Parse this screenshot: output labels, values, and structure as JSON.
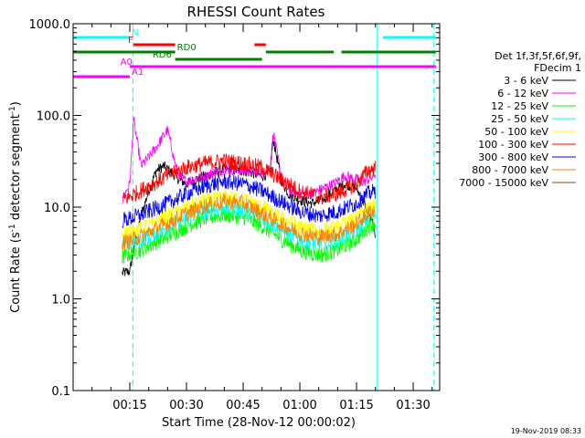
{
  "chart_data": {
    "type": "line",
    "title": "RHESSI Count Rates",
    "xlabel": "Start Time (28-Nov-12 00:00:02)",
    "ylabel": "Count Rate (s⁻¹ detector segment⁻¹)",
    "ylabel_main": "Count Rate (s",
    "ylabel_mid": " detector segment",
    "ylabel_end": ")",
    "ylabel_sup": "-1",
    "yscale": "log",
    "xlim_minutes": [
      0,
      97
    ],
    "ylim": [
      0.1,
      1000
    ],
    "x_ticks": [
      {
        "label": "00:15",
        "m": 15
      },
      {
        "label": "00:30",
        "m": 30
      },
      {
        "label": "00:45",
        "m": 45
      },
      {
        "label": "01:00",
        "m": 60
      },
      {
        "label": "01:15",
        "m": 75
      },
      {
        "label": "01:30",
        "m": 90
      }
    ],
    "y_ticks": [
      {
        "label": "1000.0",
        "v": 1000
      },
      {
        "label": "100.0",
        "v": 100
      },
      {
        "label": "10.0",
        "v": 10
      },
      {
        "label": "1.0",
        "v": 1
      },
      {
        "label": "0.1",
        "v": 0.1
      }
    ],
    "legend": {
      "header1": "Det 1f,3f,5f,6f,9f,",
      "header2": "FDecim 1",
      "position": "right"
    },
    "footer": "19-Nov-2019 08:33",
    "data_start_minute": 13,
    "data_end_minute": 80,
    "series": [
      {
        "name": "3 - 6 keV",
        "color": "#000000",
        "points": [
          [
            13,
            1.9
          ],
          [
            15,
            2.0
          ],
          [
            16,
            3.5
          ],
          [
            18,
            8
          ],
          [
            20,
            15
          ],
          [
            22,
            25
          ],
          [
            24,
            28
          ],
          [
            26,
            24
          ],
          [
            28,
            20
          ],
          [
            30,
            18
          ],
          [
            35,
            22
          ],
          [
            40,
            26
          ],
          [
            45,
            25
          ],
          [
            50,
            22
          ],
          [
            52,
            23
          ],
          [
            53,
            55
          ],
          [
            55,
            20
          ],
          [
            57,
            14
          ],
          [
            60,
            12
          ],
          [
            63,
            11
          ],
          [
            66,
            12
          ],
          [
            69,
            15
          ],
          [
            72,
            18
          ],
          [
            75,
            16
          ],
          [
            77,
            11
          ],
          [
            79,
            7
          ],
          [
            80,
            5
          ]
        ]
      },
      {
        "name": "6 - 12 keV",
        "color": "#ff00ff",
        "points": [
          [
            13,
            12
          ],
          [
            15,
            18
          ],
          [
            16,
            90
          ],
          [
            18,
            28
          ],
          [
            20,
            35
          ],
          [
            22,
            45
          ],
          [
            25,
            70
          ],
          [
            27,
            30
          ],
          [
            28,
            22
          ],
          [
            30,
            19
          ],
          [
            35,
            22
          ],
          [
            40,
            26
          ],
          [
            45,
            25
          ],
          [
            50,
            24
          ],
          [
            52,
            26
          ],
          [
            53,
            65
          ],
          [
            55,
            22
          ],
          [
            57,
            15
          ],
          [
            60,
            14
          ],
          [
            63,
            14
          ],
          [
            66,
            16
          ],
          [
            69,
            18
          ],
          [
            72,
            22
          ],
          [
            75,
            20
          ],
          [
            77,
            19
          ],
          [
            79,
            21
          ],
          [
            80,
            23
          ]
        ]
      },
      {
        "name": "12 - 25 keV",
        "color": "#00ff00",
        "points": [
          [
            13,
            2.8
          ],
          [
            15,
            3.1
          ],
          [
            17,
            3.3
          ],
          [
            20,
            3.8
          ],
          [
            25,
            4.8
          ],
          [
            30,
            6.2
          ],
          [
            35,
            7.6
          ],
          [
            40,
            8.3
          ],
          [
            45,
            7.8
          ],
          [
            50,
            6.2
          ],
          [
            55,
            4.5
          ],
          [
            60,
            3.4
          ],
          [
            65,
            3.0
          ],
          [
            70,
            3.4
          ],
          [
            75,
            4.5
          ],
          [
            78,
            6
          ],
          [
            80,
            7
          ]
        ]
      },
      {
        "name": "25 - 50 keV",
        "color": "#00ffff",
        "points": [
          [
            13,
            3.8
          ],
          [
            15,
            4.0
          ],
          [
            17,
            4.2
          ],
          [
            20,
            4.8
          ],
          [
            25,
            6.0
          ],
          [
            30,
            7.6
          ],
          [
            35,
            9.0
          ],
          [
            40,
            9.8
          ],
          [
            45,
            9.3
          ],
          [
            50,
            7.6
          ],
          [
            55,
            5.7
          ],
          [
            60,
            4.5
          ],
          [
            65,
            4.0
          ],
          [
            70,
            4.4
          ],
          [
            75,
            5.6
          ],
          [
            78,
            7.5
          ],
          [
            80,
            8.5
          ]
        ]
      },
      {
        "name": "50 - 100 keV",
        "color": "#ffff00",
        "points": [
          [
            13,
            5.2
          ],
          [
            15,
            5.5
          ],
          [
            17,
            5.8
          ],
          [
            20,
            6.4
          ],
          [
            25,
            7.8
          ],
          [
            30,
            9.8
          ],
          [
            35,
            11.8
          ],
          [
            40,
            12.8
          ],
          [
            45,
            12.2
          ],
          [
            50,
            9.8
          ],
          [
            55,
            7.6
          ],
          [
            60,
            6.1
          ],
          [
            65,
            5.5
          ],
          [
            70,
            6.0
          ],
          [
            75,
            7.6
          ],
          [
            78,
            9.5
          ],
          [
            80,
            11
          ]
        ]
      },
      {
        "name": "100 - 300 keV",
        "color": "#ff0000",
        "points": [
          [
            13,
            12
          ],
          [
            15,
            13
          ],
          [
            17,
            14.5
          ],
          [
            20,
            17
          ],
          [
            25,
            22
          ],
          [
            30,
            27
          ],
          [
            35,
            30
          ],
          [
            40,
            32
          ],
          [
            45,
            30
          ],
          [
            50,
            27
          ],
          [
            55,
            20
          ],
          [
            60,
            15
          ],
          [
            65,
            13
          ],
          [
            70,
            14
          ],
          [
            75,
            18
          ],
          [
            78,
            25
          ],
          [
            80,
            27
          ]
        ]
      },
      {
        "name": "300 - 800 keV",
        "color": "#0000ff",
        "points": [
          [
            13,
            7.2
          ],
          [
            15,
            7.5
          ],
          [
            17,
            8
          ],
          [
            20,
            9
          ],
          [
            25,
            11
          ],
          [
            30,
            14
          ],
          [
            35,
            17
          ],
          [
            40,
            19
          ],
          [
            45,
            18
          ],
          [
            50,
            15
          ],
          [
            55,
            11.5
          ],
          [
            60,
            9
          ],
          [
            65,
            8
          ],
          [
            70,
            9
          ],
          [
            75,
            11
          ],
          [
            78,
            14
          ],
          [
            80,
            15
          ]
        ]
      },
      {
        "name": "800 - 7000 keV",
        "color": "#ff8000",
        "points": [
          [
            13,
            4.1
          ],
          [
            15,
            4.3
          ],
          [
            17,
            4.6
          ],
          [
            20,
            5.3
          ],
          [
            25,
            6.7
          ],
          [
            30,
            8.5
          ],
          [
            35,
            10.4
          ],
          [
            40,
            11.5
          ],
          [
            45,
            11.0
          ],
          [
            50,
            8.6
          ],
          [
            55,
            6.5
          ],
          [
            60,
            5.2
          ],
          [
            65,
            4.7
          ],
          [
            70,
            5.1
          ],
          [
            75,
            6.6
          ],
          [
            78,
            8.5
          ],
          [
            80,
            9.5
          ]
        ]
      },
      {
        "name": "7000 - 15000 keV",
        "color": "#8b4513",
        "points": []
      }
    ],
    "annotations": {
      "flags": [
        {
          "label": "N",
          "color": "#00ffff",
          "segments": [
            [
              0,
              15
            ],
            [
              82,
              96
            ]
          ],
          "level": 0,
          "label_at": 15.5
        },
        {
          "label": "F",
          "color": "#ff0000",
          "segments": [
            [
              16,
              27
            ],
            [
              48,
              51
            ]
          ],
          "level": 1,
          "label_at": 14.5
        },
        {
          "label": "RD0",
          "color": "#008000",
          "segments": [
            [
              0,
              27
            ],
            [
              51,
              69
            ],
            [
              71,
              96
            ]
          ],
          "level": 2,
          "label_at": 27.5
        },
        {
          "label": "RD6",
          "color": "#008000",
          "segments": [
            [
              27,
              50
            ]
          ],
          "level": 3,
          "label_at": 21
        },
        {
          "label": "A0",
          "color": "#ff00ff",
          "segments": [
            [
              15,
              96
            ]
          ],
          "level": 4,
          "label_at": 12.5
        },
        {
          "label": "A1",
          "color": "#ff00ff",
          "segments": [
            [
              0,
              15
            ]
          ],
          "level": 5,
          "label_at": 15.5
        }
      ],
      "vlines": [
        {
          "m": 15.8,
          "color": "#00ffff",
          "style": "dashed"
        },
        {
          "m": 80.5,
          "color": "#00ffff",
          "style": "solid"
        },
        {
          "m": 95.5,
          "color": "#00ffff",
          "style": "dashed"
        }
      ]
    }
  }
}
